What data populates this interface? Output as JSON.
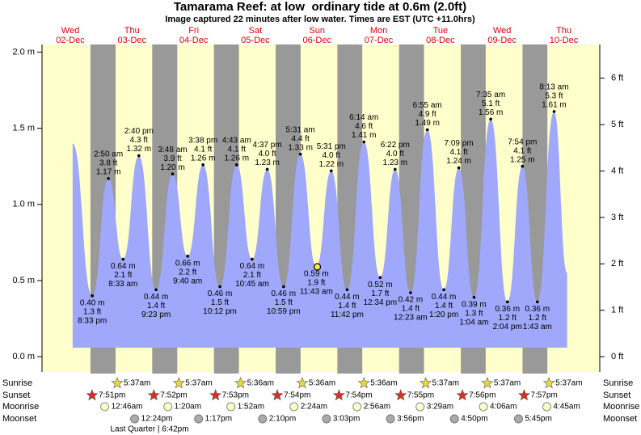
{
  "chart_data": {
    "type": "tide",
    "title": "Tamarama Reef: at low  ordinary tide at 0.6m (2.0ft)",
    "subtitle": "Image captured 22 minutes after low water. Times are EST (UTC +11.0hrs)",
    "days": [
      {
        "weekday": "Wed",
        "date": "02-Dec"
      },
      {
        "weekday": "Thu",
        "date": "03-Dec"
      },
      {
        "weekday": "Fri",
        "date": "04-Dec"
      },
      {
        "weekday": "Sat",
        "date": "05-Dec"
      },
      {
        "weekday": "Sun",
        "date": "06-Dec"
      },
      {
        "weekday": "Mon",
        "date": "07-Dec"
      },
      {
        "weekday": "Tue",
        "date": "08-Dec"
      },
      {
        "weekday": "Wed",
        "date": "09-Dec"
      },
      {
        "weekday": "Thu",
        "date": "10-Dec"
      }
    ],
    "xlim": [
      1,
      218
    ],
    "ylim": [
      -0.1,
      2.05
    ],
    "yticks": [
      {
        "value": 0,
        "label": "0.0 m"
      },
      {
        "value": 0.5,
        "label": "0.5 m"
      },
      {
        "value": 1,
        "label": "1.0 m"
      },
      {
        "value": 1.5,
        "label": "1.5 m"
      },
      {
        "value": 2,
        "label": "2.0 m"
      }
    ],
    "y2lim": [
      -0.328,
      6.726
    ],
    "y2ticks": [
      {
        "value": 0,
        "label": "0 ft"
      },
      {
        "value": 1,
        "label": "1 ft"
      },
      {
        "value": 2,
        "label": "2 ft"
      },
      {
        "value": 3,
        "label": "3 ft"
      },
      {
        "value": 4,
        "label": "4 ft"
      },
      {
        "value": 5,
        "label": "5 ft"
      },
      {
        "value": 6,
        "label": "6 ft"
      }
    ],
    "series": [
      {
        "color": "#9fa8fb",
        "x": [
          12.9,
          20.55,
          26.83,
          32.55,
          38.67,
          45.38,
          51.8,
          57.67,
          63.63,
          70.2,
          76.72,
          82.75,
          88.62,
          94.98,
          101.52,
          107.72,
          113.52,
          119.7,
          126.23,
          132.57,
          138.37,
          144.38,
          150.92,
          157.33,
          163.15,
          169.07,
          175.58,
          182.07,
          187.9,
          193.72,
          200.22,
          205.3
        ],
        "values": [
          1.4,
          0.4,
          1.17,
          0.64,
          1.32,
          0.44,
          1.2,
          0.66,
          1.26,
          0.46,
          1.26,
          0.64,
          1.23,
          0.46,
          1.33,
          0.59,
          1.22,
          0.44,
          1.41,
          0.52,
          1.23,
          0.42,
          1.49,
          0.44,
          1.24,
          0.39,
          1.56,
          0.36,
          1.25,
          0.36,
          1.61,
          0.55
        ],
        "value_labels": [
          null,
          "0.40 m",
          "1.17 m",
          "0.64 m",
          "1.32 m",
          "0.44 m",
          "1.20 m",
          "0.66 m",
          "1.26 m",
          "0.46 m",
          "1.26 m",
          "0.64 m",
          "1.23 m",
          "0.46 m",
          "1.33 m",
          "0.59 m",
          "1.22 m",
          "0.44 m",
          "1.41 m",
          "0.52 m",
          "1.23 m",
          "0.42 m",
          "1.49 m",
          "0.44 m",
          "1.24 m",
          "0.39 m",
          "1.56 m",
          "0.36 m",
          "1.25 m",
          "0.36 m",
          "1.61 m",
          null
        ],
        "ft_labels": [
          null,
          "1.3 ft",
          "3.8 ft",
          "2.1 ft",
          "4.3 ft",
          "1.4 ft",
          "3.9 ft",
          "2.2 ft",
          "4.1 ft",
          "1.5 ft",
          "4.1 ft",
          "2.1 ft",
          "4.0 ft",
          "1.5 ft",
          "4.4 ft",
          "1.9 ft",
          "4.0 ft",
          "1.4 ft",
          "4.6 ft",
          "1.7 ft",
          "4.0 ft",
          "1.4 ft",
          "4.9 ft",
          "1.4 ft",
          "4.1 ft",
          "1.3 ft",
          "5.1 ft",
          "1.2 ft",
          "4.1 ft",
          "1.2 ft",
          "5.3 ft",
          null
        ],
        "time_labels": [
          null,
          "8:33 pm",
          "2:50 am",
          "8:33 am",
          "2:40 pm",
          "9:23 pm",
          "3:48 am",
          "9:40 am",
          "3:38 pm",
          "10:12 pm",
          "4:43 am",
          "10:45 am",
          "4:37 pm",
          "10:59 pm",
          "5:31 am",
          "11:43 am",
          "5:31 pm",
          "11:42 pm",
          "6:14 am",
          "12:34 pm",
          "6:22 pm",
          "12:23 am",
          "6:55 am",
          "1:20 pm",
          "7:09 pm",
          "1:04 am",
          "7:35 am",
          "2:04 pm",
          "7:54 pm",
          "1:43 am",
          "8:13 am",
          null
        ]
      }
    ],
    "marker": {
      "x": 108.1,
      "value": 0.59,
      "color": "#ffee33"
    },
    "rows": {
      "sunrise": "Sunrise",
      "sunset": "Sunset",
      "moonrise": "Moonrise",
      "moonset": "Moonset"
    },
    "sunrise": [
      "5:37am",
      "5:37am",
      "5:36am",
      "5:36am",
      "5:36am",
      "5:37am",
      "5:37am",
      "5:37am"
    ],
    "sunset": [
      "7:51pm",
      "7:52pm",
      "7:53pm",
      "7:54pm",
      "7:54pm",
      "7:55pm",
      "7:56pm",
      "7:57pm"
    ],
    "moonrise": [
      "12:46am",
      "1:20am",
      "1:52am",
      "2:24am",
      "2:56am",
      "3:29am",
      "4:06am",
      "4:45am"
    ],
    "moonset": [
      "12:24pm",
      "1:17pm",
      "2:10pm",
      "3:03pm",
      "3:56pm",
      "4:50pm",
      "5:45pm"
    ],
    "moon_phase": "Last Quarter | 6:42pm"
  }
}
